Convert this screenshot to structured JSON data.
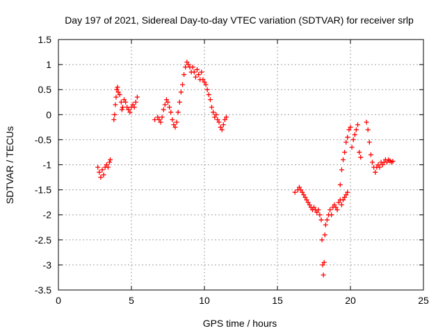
{
  "chart_data": {
    "type": "scatter",
    "title": "Day 197 of 2021, Sidereal Day-to-day VTEC variation (SDTVAR) for receiver srlp",
    "xlabel": "GPS time / hours",
    "ylabel": "SDTVAR / TECUs",
    "xlim": [
      0,
      25
    ],
    "ylim": [
      -3.5,
      1.5
    ],
    "xticks": [
      0,
      5,
      10,
      15,
      20,
      25
    ],
    "xtick_labels": [
      "0",
      "5",
      "10",
      "15",
      "20",
      "25"
    ],
    "yticks": [
      -3.5,
      -3,
      -2.5,
      -2,
      -1.5,
      -1,
      -0.5,
      0,
      0.5,
      1,
      1.5
    ],
    "ytick_labels": [
      "-3.5",
      "-3",
      "-2.5",
      "-2",
      "-1.5",
      "-1",
      "-0.5",
      "0",
      "0.5",
      "1",
      "1.5"
    ],
    "grid": true,
    "marker": "+",
    "color": "#ff0000",
    "series": [
      {
        "name": "SDTVAR",
        "points": [
          [
            2.7,
            -1.05
          ],
          [
            2.8,
            -1.15
          ],
          [
            2.9,
            -1.25
          ],
          [
            3.0,
            -1.1
          ],
          [
            3.1,
            -1.2
          ],
          [
            3.2,
            -1.05
          ],
          [
            3.3,
            -1.0
          ],
          [
            3.4,
            -1.05
          ],
          [
            3.5,
            -0.95
          ],
          [
            3.55,
            -0.9
          ],
          [
            3.8,
            -0.1
          ],
          [
            3.85,
            0.0
          ],
          [
            3.9,
            0.2
          ],
          [
            3.95,
            0.35
          ],
          [
            4.0,
            0.5
          ],
          [
            4.05,
            0.55
          ],
          [
            4.1,
            0.45
          ],
          [
            4.2,
            0.4
          ],
          [
            4.3,
            0.25
          ],
          [
            4.35,
            0.1
          ],
          [
            4.4,
            0.15
          ],
          [
            4.5,
            0.3
          ],
          [
            4.6,
            0.25
          ],
          [
            4.7,
            0.15
          ],
          [
            4.8,
            0.1
          ],
          [
            4.9,
            0.05
          ],
          [
            5.0,
            0.15
          ],
          [
            5.1,
            0.2
          ],
          [
            5.2,
            0.15
          ],
          [
            5.3,
            0.25
          ],
          [
            5.4,
            0.35
          ],
          [
            6.6,
            -0.1
          ],
          [
            6.8,
            -0.05
          ],
          [
            6.9,
            -0.1
          ],
          [
            7.0,
            -0.15
          ],
          [
            7.1,
            -0.05
          ],
          [
            7.2,
            0.1
          ],
          [
            7.3,
            0.2
          ],
          [
            7.4,
            0.3
          ],
          [
            7.5,
            0.25
          ],
          [
            7.6,
            0.15
          ],
          [
            7.7,
            0.05
          ],
          [
            7.8,
            -0.1
          ],
          [
            7.9,
            -0.2
          ],
          [
            8.0,
            -0.25
          ],
          [
            8.1,
            -0.15
          ],
          [
            8.2,
            0.05
          ],
          [
            8.3,
            0.25
          ],
          [
            8.4,
            0.45
          ],
          [
            8.5,
            0.6
          ],
          [
            8.6,
            0.8
          ],
          [
            8.7,
            0.95
          ],
          [
            8.8,
            1.05
          ],
          [
            8.9,
            1.0
          ],
          [
            9.0,
            0.95
          ],
          [
            9.1,
            0.85
          ],
          [
            9.2,
            0.95
          ],
          [
            9.3,
            0.85
          ],
          [
            9.4,
            0.75
          ],
          [
            9.5,
            0.9
          ],
          [
            9.6,
            0.8
          ],
          [
            9.7,
            0.7
          ],
          [
            9.8,
            0.85
          ],
          [
            9.9,
            0.7
          ],
          [
            10.0,
            0.65
          ],
          [
            10.1,
            0.6
          ],
          [
            10.2,
            0.5
          ],
          [
            10.3,
            0.4
          ],
          [
            10.4,
            0.3
          ],
          [
            10.5,
            0.15
          ],
          [
            10.6,
            0.05
          ],
          [
            10.7,
            -0.05
          ],
          [
            10.8,
            0.0
          ],
          [
            10.9,
            -0.1
          ],
          [
            11.0,
            -0.15
          ],
          [
            11.1,
            -0.25
          ],
          [
            11.2,
            -0.3
          ],
          [
            11.3,
            -0.2
          ],
          [
            11.4,
            -0.1
          ],
          [
            11.5,
            -0.05
          ],
          [
            16.2,
            -1.55
          ],
          [
            16.4,
            -1.5
          ],
          [
            16.5,
            -1.45
          ],
          [
            16.6,
            -1.5
          ],
          [
            16.7,
            -1.55
          ],
          [
            16.8,
            -1.6
          ],
          [
            16.9,
            -1.65
          ],
          [
            17.0,
            -1.7
          ],
          [
            17.1,
            -1.75
          ],
          [
            17.2,
            -1.8
          ],
          [
            17.3,
            -1.85
          ],
          [
            17.4,
            -1.9
          ],
          [
            17.5,
            -1.85
          ],
          [
            17.6,
            -1.9
          ],
          [
            17.7,
            -1.95
          ],
          [
            17.8,
            -1.9
          ],
          [
            17.9,
            -2.0
          ],
          [
            18.0,
            -2.1
          ],
          [
            18.05,
            -2.5
          ],
          [
            18.1,
            -3.0
          ],
          [
            18.15,
            -3.2
          ],
          [
            18.2,
            -2.95
          ],
          [
            18.25,
            -2.4
          ],
          [
            18.3,
            -2.2
          ],
          [
            18.4,
            -2.1
          ],
          [
            18.5,
            -2.0
          ],
          [
            18.6,
            -1.9
          ],
          [
            18.7,
            -2.0
          ],
          [
            18.8,
            -1.85
          ],
          [
            18.9,
            -1.8
          ],
          [
            19.0,
            -1.85
          ],
          [
            19.1,
            -1.9
          ],
          [
            19.2,
            -1.75
          ],
          [
            19.3,
            -1.7
          ],
          [
            19.4,
            -1.8
          ],
          [
            19.5,
            -1.7
          ],
          [
            19.6,
            -1.65
          ],
          [
            19.7,
            -1.6
          ],
          [
            19.8,
            -1.55
          ],
          [
            19.3,
            -1.4
          ],
          [
            19.4,
            -1.1
          ],
          [
            19.5,
            -0.9
          ],
          [
            19.6,
            -0.75
          ],
          [
            19.7,
            -0.55
          ],
          [
            19.8,
            -0.45
          ],
          [
            19.9,
            -0.3
          ],
          [
            20.0,
            -0.25
          ],
          [
            20.1,
            -0.65
          ],
          [
            20.2,
            -0.5
          ],
          [
            20.3,
            -0.4
          ],
          [
            20.4,
            -0.3
          ],
          [
            20.5,
            -0.2
          ],
          [
            20.6,
            -0.75
          ],
          [
            20.7,
            -0.85
          ],
          [
            21.1,
            -0.15
          ],
          [
            21.2,
            -0.3
          ],
          [
            21.3,
            -0.55
          ],
          [
            21.4,
            -0.8
          ],
          [
            21.5,
            -0.95
          ],
          [
            21.6,
            -1.05
          ],
          [
            21.7,
            -1.15
          ],
          [
            21.8,
            -1.05
          ],
          [
            21.9,
            -1.0
          ],
          [
            22.0,
            -1.05
          ],
          [
            22.1,
            -0.95
          ],
          [
            22.2,
            -1.0
          ],
          [
            22.3,
            -0.95
          ],
          [
            22.4,
            -0.9
          ],
          [
            22.5,
            -0.95
          ],
          [
            22.6,
            -0.9
          ],
          [
            22.7,
            -0.92
          ],
          [
            22.8,
            -0.95
          ],
          [
            22.9,
            -0.93
          ]
        ]
      }
    ]
  }
}
